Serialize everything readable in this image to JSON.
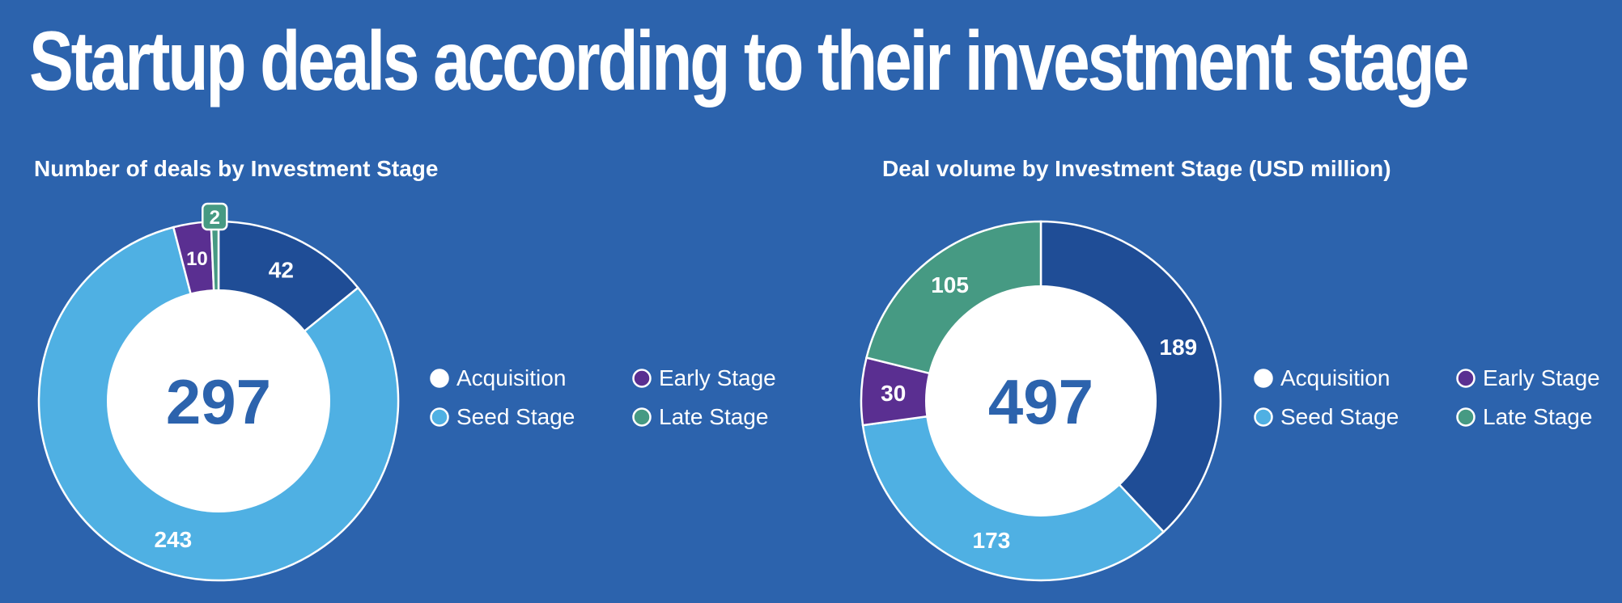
{
  "title": "Startup deals according to their investment stage",
  "colors": {
    "background": "#2c63ad",
    "acquisition": "#1f4d96",
    "seed_stage": "#4fb0e3",
    "early_stage": "#5a2f91",
    "late_stage": "#469a83",
    "center": "#ffffff",
    "center_text": "#2c63ad"
  },
  "chart_data": [
    {
      "type": "pie",
      "title": "Number of deals by Investment Stage",
      "center_label": "297",
      "series": [
        {
          "name": "Acquisition",
          "value": 42,
          "color": "#1f4d96",
          "label": "42"
        },
        {
          "name": "Seed Stage",
          "value": 243,
          "color": "#4fb0e3",
          "label": "243"
        },
        {
          "name": "Early Stage",
          "value": 10,
          "color": "#5a2f91",
          "label": "10"
        },
        {
          "name": "Late Stage",
          "value": 2,
          "color": "#469a83",
          "label": "2"
        }
      ],
      "legend": [
        {
          "name": "Acquisition",
          "color": "#ffffff"
        },
        {
          "name": "Early Stage",
          "color": "#5a2f91"
        },
        {
          "name": "Seed Stage",
          "color": "#4fb0e3"
        },
        {
          "name": "Late Stage",
          "color": "#469a83"
        }
      ],
      "legend_placement": "right"
    },
    {
      "type": "pie",
      "title": "Deal volume by Investment Stage (USD million)",
      "center_label": "497",
      "series": [
        {
          "name": "Acquisition",
          "value": 189,
          "color": "#1f4d96",
          "label": "189"
        },
        {
          "name": "Seed Stage",
          "value": 173,
          "color": "#4fb0e3",
          "label": "173"
        },
        {
          "name": "Early Stage",
          "value": 30,
          "color": "#5a2f91",
          "label": "30"
        },
        {
          "name": "Late Stage",
          "value": 105,
          "color": "#469a83",
          "label": "105"
        }
      ],
      "legend": [
        {
          "name": "Acquisition",
          "color": "#ffffff"
        },
        {
          "name": "Early Stage",
          "color": "#5a2f91"
        },
        {
          "name": "Seed Stage",
          "color": "#4fb0e3"
        },
        {
          "name": "Late Stage",
          "color": "#469a83"
        }
      ],
      "legend_placement": "right"
    }
  ]
}
